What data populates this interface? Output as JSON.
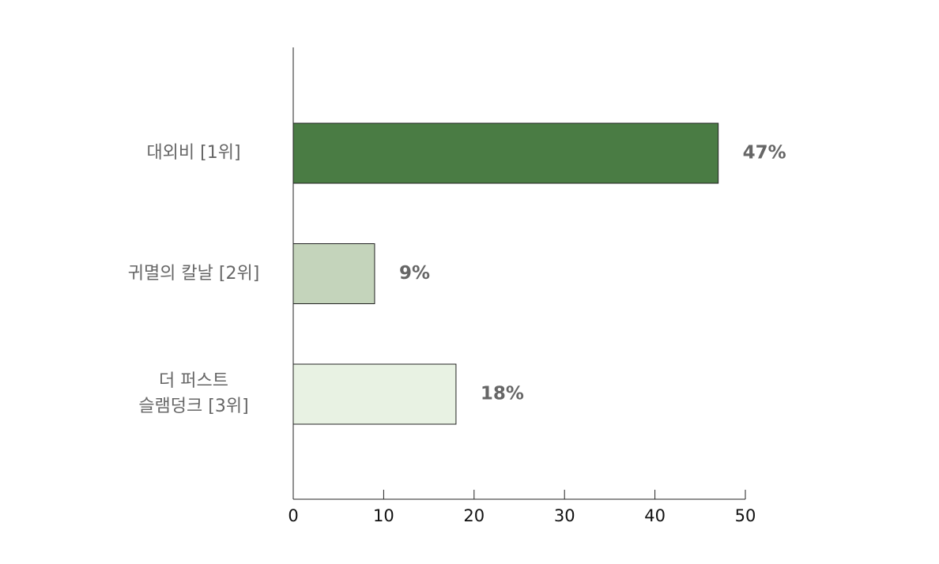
{
  "chart_data": {
    "type": "bar",
    "orientation": "horizontal",
    "categories": [
      "대외비 [1위]",
      "귀멸의 칼날 [2위]",
      "더 퍼스트\n슬램덩크 [3위]"
    ],
    "values": [
      47,
      9,
      18
    ],
    "value_labels": [
      "47%",
      "9%",
      "18%"
    ],
    "colors": [
      "#4a7c44",
      "#c4d4bb",
      "#e8f2e3"
    ],
    "xlim": [
      0,
      50
    ],
    "xticks": [
      0,
      10,
      20,
      30,
      40,
      50
    ]
  }
}
